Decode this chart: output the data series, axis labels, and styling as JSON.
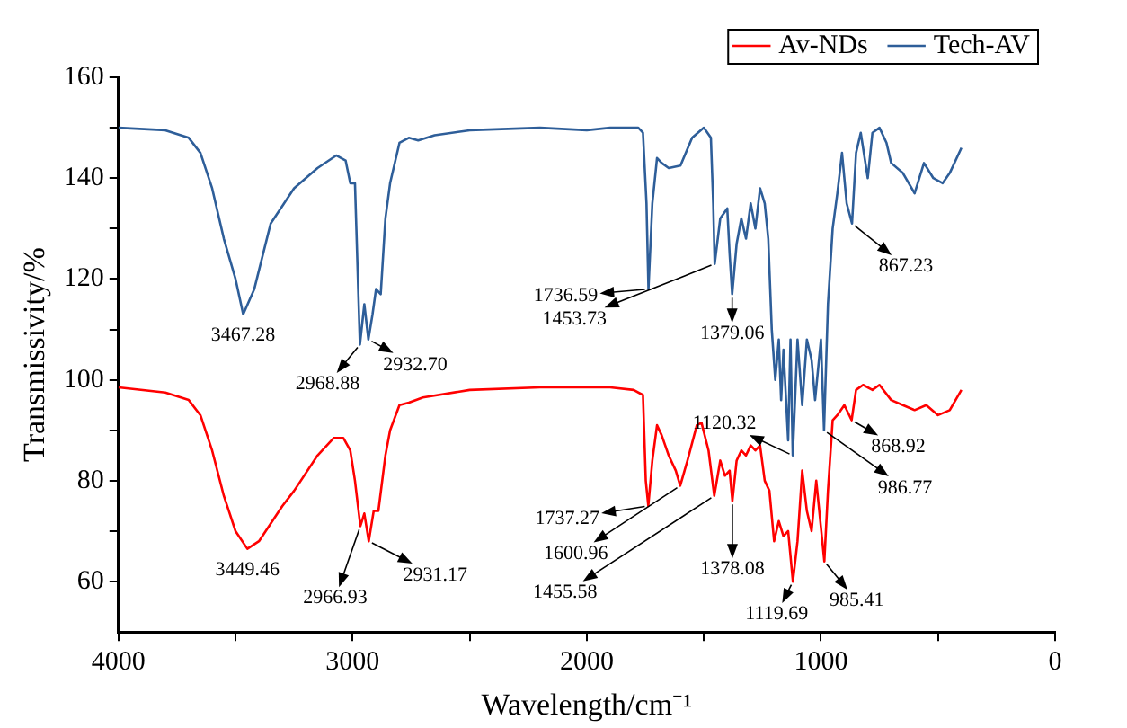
{
  "chart_data": {
    "type": "line",
    "xlabel": "Wavelength/cm⁻¹",
    "ylabel": "Transmissivity/%",
    "xlim": [
      4000,
      0
    ],
    "xticks": [
      4000,
      {
        "value": 3500,
        "label": null
      },
      3000,
      {
        "value": 2500,
        "label": null
      },
      2000,
      {
        "value": 1500,
        "label": null
      },
      1000,
      {
        "value": 500,
        "label": null
      },
      0
    ],
    "ylim": [
      50,
      160
    ],
    "yticks": [
      60,
      {
        "value": 70,
        "label": null
      },
      80,
      {
        "value": 90,
        "label": null
      },
      100,
      {
        "value": 110,
        "label": null
      },
      120,
      {
        "value": 130,
        "label": null
      },
      140,
      {
        "value": 150,
        "label": null
      },
      160
    ],
    "grid": false,
    "legend": "top right",
    "marker": "none",
    "line_style": "solid",
    "series": [
      {
        "name": "Av-NDs",
        "color": "#ff0000",
        "x": [
          4000,
          3800,
          3700,
          3650,
          3600,
          3550,
          3500,
          3449.46,
          3400,
          3300,
          3250,
          3150,
          3080,
          3040,
          3010,
          2990,
          2966.93,
          2950,
          2931.17,
          2910,
          2890,
          2860,
          2840,
          2800,
          2760,
          2700,
          2500,
          2200,
          1900,
          1800,
          1760,
          1748,
          1737.27,
          1720,
          1700,
          1680,
          1650,
          1620,
          1600.96,
          1570,
          1530,
          1510,
          1480,
          1455.58,
          1430,
          1410,
          1390,
          1378.08,
          1360,
          1340,
          1320,
          1300,
          1280,
          1260,
          1240,
          1220,
          1200,
          1180,
          1160,
          1140,
          1119.69,
          1100,
          1080,
          1060,
          1040,
          1020,
          985.41,
          970,
          950,
          930,
          900,
          868.92,
          850,
          820,
          780,
          750,
          700,
          650,
          600,
          550,
          500,
          450,
          400
        ],
        "values": [
          98.5,
          97.5,
          96,
          93,
          86,
          77,
          70,
          66.5,
          68,
          75,
          78,
          85,
          88.5,
          88.5,
          86,
          80,
          71,
          73.5,
          68,
          74,
          74,
          85,
          90,
          95,
          95.5,
          96.5,
          98,
          98.5,
          98.5,
          98,
          97,
          80,
          75,
          84,
          91,
          89,
          85,
          82,
          79,
          84,
          91,
          91.5,
          86,
          77,
          84,
          81,
          82,
          76,
          84,
          86,
          85,
          87,
          86,
          87,
          80,
          78,
          68,
          72,
          69,
          70,
          60,
          68,
          82,
          74,
          70,
          80,
          64,
          78,
          92,
          93,
          95,
          92,
          98,
          99,
          98,
          99,
          96,
          95,
          94,
          95,
          93,
          94,
          98
        ]
      },
      {
        "name": "Tech-AV",
        "color": "#2e5e99",
        "x": [
          4000,
          3800,
          3700,
          3650,
          3600,
          3550,
          3500,
          3467.28,
          3420,
          3350,
          3250,
          3150,
          3070,
          3030,
          3010,
          2990,
          2968.88,
          2950,
          2932.7,
          2915,
          2900,
          2880,
          2860,
          2840,
          2800,
          2760,
          2720,
          2650,
          2500,
          2200,
          2000,
          1900,
          1780,
          1760,
          1745,
          1736.59,
          1720,
          1700,
          1680,
          1650,
          1600,
          1550,
          1500,
          1470,
          1460,
          1453.73,
          1430,
          1400,
          1390,
          1379.06,
          1360,
          1340,
          1320,
          1300,
          1280,
          1260,
          1240,
          1225,
          1210,
          1195,
          1180,
          1170,
          1160,
          1140,
          1130,
          1120.32,
          1100,
          1080,
          1060,
          1040,
          1025,
          1000,
          986.77,
          970,
          950,
          930,
          910,
          890,
          867.23,
          850,
          830,
          800,
          780,
          750,
          720,
          700,
          650,
          600,
          560,
          520,
          480,
          450,
          400
        ],
        "values": [
          150,
          149.5,
          148,
          145,
          138,
          128,
          120,
          113,
          118,
          131,
          138,
          142,
          144.5,
          143.5,
          139,
          139,
          107,
          115,
          108,
          113,
          118,
          117,
          132,
          139,
          147,
          148,
          147.5,
          148.5,
          149.5,
          150,
          149.5,
          150,
          150,
          149,
          135,
          118,
          135,
          144,
          143,
          142,
          142.5,
          148,
          150,
          148,
          135,
          123,
          132,
          134,
          125,
          117,
          127,
          132,
          128,
          135,
          130,
          138,
          135,
          128,
          110,
          100,
          108,
          96,
          106,
          88,
          108,
          85,
          108,
          95,
          108,
          104,
          96,
          108,
          90,
          115,
          130,
          137,
          145,
          135,
          131,
          145,
          149,
          140,
          149,
          150,
          147,
          143,
          141,
          137,
          143,
          140,
          139,
          141,
          146
        ]
      }
    ],
    "annotations": [
      {
        "text": "3467.28",
        "x": 3467.28,
        "y": 113
      },
      {
        "text": "2968.88",
        "x": 2968.88,
        "y": 107
      },
      {
        "text": "2932.70",
        "x": 2932.7,
        "y": 108
      },
      {
        "text": "1736.59",
        "x": 1736.59,
        "y": 118
      },
      {
        "text": "1453.73",
        "x": 1453.73,
        "y": 123
      },
      {
        "text": "1379.06",
        "x": 1379.06,
        "y": 117
      },
      {
        "text": "1120.32",
        "x": 1120.32,
        "y": 85
      },
      {
        "text": "986.77",
        "x": 986.77,
        "y": 90
      },
      {
        "text": "867.23",
        "x": 867.23,
        "y": 131
      },
      {
        "text": "868.92",
        "x": 868.92,
        "y": 92
      },
      {
        "text": "3449.46",
        "x": 3449.46,
        "y": 66.5
      },
      {
        "text": "2966.93",
        "x": 2966.93,
        "y": 71
      },
      {
        "text": "2931.17",
        "x": 2931.17,
        "y": 68
      },
      {
        "text": "1737.27",
        "x": 1737.27,
        "y": 75
      },
      {
        "text": "1600.96",
        "x": 1600.96,
        "y": 79
      },
      {
        "text": "1455.58",
        "x": 1455.58,
        "y": 77
      },
      {
        "text": "1378.08",
        "x": 1378.08,
        "y": 76
      },
      {
        "text": "1119.69",
        "x": 1119.69,
        "y": 60
      },
      {
        "text": "985.41",
        "x": 985.41,
        "y": 64
      }
    ]
  }
}
